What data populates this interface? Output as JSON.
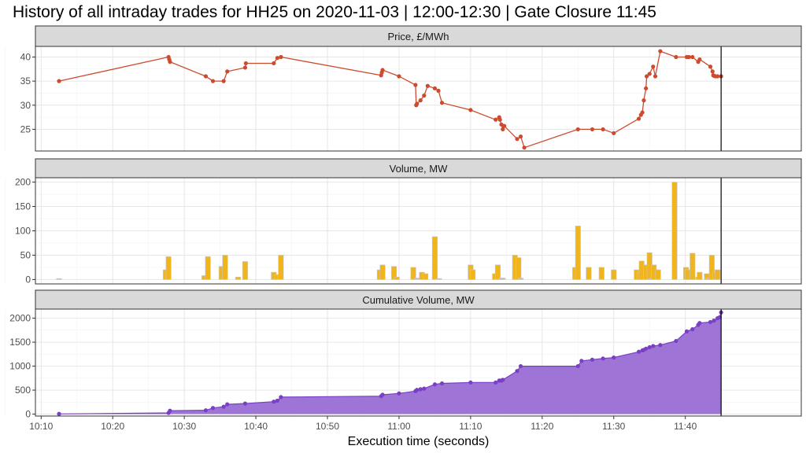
{
  "title": "History of all intraday trades for HH25 on 2020-11-03 | 12:00-12:30 | Gate Closure 11:45",
  "x_axis": {
    "title": "Execution time (seconds)",
    "ticks": [
      "10:10",
      "10:20",
      "10:30",
      "10:40",
      "10:50",
      "11:00",
      "11:10",
      "11:20",
      "11:30",
      "11:40"
    ],
    "tick_minutes": [
      610,
      620,
      630,
      640,
      650,
      660,
      670,
      680,
      690,
      700
    ],
    "range_minutes": [
      609.2,
      716.2
    ],
    "gate_closure_minutes": 705
  },
  "colors": {
    "price": "#CC4B2F",
    "volume_bar": "#F0B41C",
    "volume_bar_grey": "#BDBDBD",
    "cumulative": "#7A3FC4",
    "cumulative_fill": "#9E74D6",
    "strip": "#D9D9D9",
    "gate_line": "#000000"
  },
  "chart_data": [
    {
      "type": "line",
      "strip": "Price, £/MWh",
      "ylim": [
        20.5,
        42.2
      ],
      "yticks": [
        25,
        30,
        35,
        40
      ],
      "grid": true,
      "series": [
        {
          "x": [
            612.5,
            627.8,
            627.9,
            628,
            633,
            634,
            635.5,
            636,
            638.5,
            638.6,
            642.5,
            643,
            643.5,
            657.5,
            657.6,
            657.7,
            660,
            662.3,
            662.4,
            662.5,
            663,
            663.5,
            664,
            665,
            665.5,
            666,
            670,
            673.5,
            674,
            674.1,
            674.3,
            674.5,
            674.7,
            676.5,
            677,
            677.5,
            685,
            687,
            688.5,
            690,
            693.5,
            693.8,
            694,
            694.2,
            694.5,
            694.6,
            695,
            695.5,
            695.8,
            696.5,
            698.7,
            700.2,
            700.5,
            701,
            701.8,
            702,
            703.5,
            703.8,
            703.9,
            704,
            704.2,
            704.5,
            705
          ],
          "values": [
            35,
            40,
            39.5,
            39,
            36,
            35,
            35,
            37,
            37.8,
            38.7,
            38.7,
            39.8,
            40,
            36.2,
            36.8,
            37.3,
            36,
            34.2,
            30,
            30.3,
            31,
            32,
            34,
            33.5,
            33,
            30.5,
            29,
            27,
            27.5,
            27,
            26,
            25,
            25.7,
            23,
            23.5,
            21.2,
            25,
            25,
            25,
            24.2,
            27.2,
            28,
            28.5,
            31,
            33.5,
            36,
            36.5,
            38,
            36,
            41.2,
            40,
            40,
            40,
            40,
            39,
            39.5,
            38,
            37,
            36.2,
            36.1,
            36,
            36,
            36
          ]
        }
      ]
    },
    {
      "type": "bar",
      "strip": "Volume, MW",
      "ylim": [
        -9,
        209
      ],
      "yticks": [
        0,
        50,
        100,
        150,
        200
      ],
      "grid": true,
      "x": [
        612.5,
        627.4,
        627.8,
        632.8,
        633.3,
        635.2,
        635.7,
        637.5,
        638.5,
        642.5,
        643,
        643.5,
        657.3,
        657.7,
        659.3,
        659.7,
        662,
        662.5,
        663.2,
        663.7,
        665,
        665.6,
        670,
        670.3,
        673.4,
        673.8,
        674.3,
        674.5,
        676.2,
        676.7,
        677,
        684.6,
        685,
        686.5,
        688.3,
        690,
        693.2,
        693.6,
        693.9,
        694.5,
        695,
        695.2,
        695.6,
        696.2,
        698.5,
        700.1,
        700.3,
        701,
        701.8,
        702,
        703,
        703.3,
        703.7,
        704.2,
        704.5
      ],
      "values": [
        2,
        20,
        47,
        8,
        47,
        27,
        50,
        5,
        37,
        15,
        10,
        50,
        20,
        30,
        27,
        5,
        25,
        3,
        15,
        12,
        88,
        2,
        30,
        20,
        12,
        30,
        3,
        3,
        50,
        45,
        3,
        25,
        110,
        25,
        25,
        20,
        20,
        15,
        38,
        30,
        55,
        2,
        30,
        20,
        200,
        25,
        20,
        54,
        5,
        15,
        12,
        3,
        50,
        15,
        20
      ]
    },
    {
      "type": "area",
      "strip": "Cumulative Volume, MW",
      "ylim": [
        -40,
        2190
      ],
      "yticks": [
        0,
        500,
        1000,
        1500,
        2000
      ],
      "grid": true,
      "series": [
        {
          "x": [
            612.5,
            627.8,
            628,
            633,
            634,
            635.5,
            636,
            638.5,
            642.5,
            643,
            643.5,
            657.5,
            657.7,
            660,
            662.3,
            662.5,
            663,
            663.5,
            665,
            666,
            670,
            673.5,
            674,
            674.3,
            674.5,
            676.5,
            677,
            685,
            685.5,
            687,
            688.5,
            690,
            693.5,
            694,
            694.2,
            694.5,
            695,
            695.5,
            696.5,
            698.7,
            700.2,
            701,
            701.8,
            702,
            703.5,
            704,
            704.5,
            704.8,
            705
          ],
          "values": [
            5,
            25,
            72,
            80,
            128,
            155,
            205,
            220,
            260,
            280,
            355,
            375,
            405,
            432,
            480,
            505,
            520,
            532,
            620,
            640,
            660,
            660,
            700,
            700,
            715,
            900,
            1000,
            1000,
            1110,
            1135,
            1160,
            1180,
            1300,
            1330,
            1340,
            1365,
            1395,
            1420,
            1440,
            1525,
            1725,
            1770,
            1860,
            1900,
            1920,
            1950,
            2000,
            2020,
            2120
          ]
        }
      ]
    }
  ]
}
